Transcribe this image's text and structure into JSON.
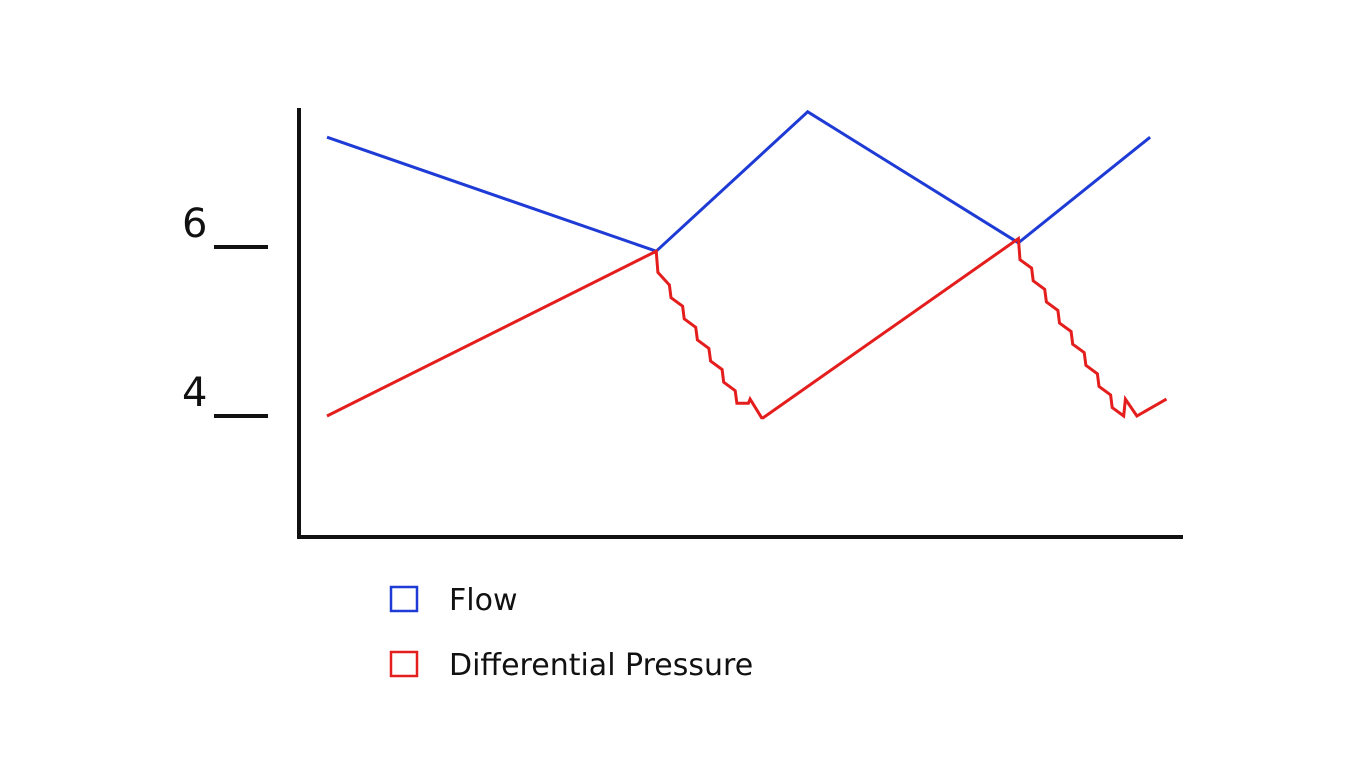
{
  "chart_data": {
    "type": "line",
    "title": "",
    "xlabel": "",
    "ylabel": "",
    "grid": false,
    "legend_placement": "bottom",
    "ylim": [
      2.6,
      7.6
    ],
    "xlim": [
      0,
      26
    ],
    "yticks": [
      {
        "value": 6,
        "label": "6"
      },
      {
        "value": 4,
        "label": "4"
      }
    ],
    "series": [
      {
        "name": "Flow",
        "color": "#1f3bd6",
        "x": [
          0,
          10,
          14.6,
          21,
          25
        ],
        "y": [
          7.3,
          5.95,
          7.6,
          6.05,
          7.3
        ]
      },
      {
        "name": "Differential Pressure",
        "color": "#e41d1d",
        "x": [
          0,
          10,
          10.05,
          10.4,
          10.45,
          10.8,
          10.85,
          11.2,
          11.25,
          11.6,
          11.65,
          12.0,
          12.05,
          12.4,
          12.45,
          12.8,
          12.85,
          13.2,
          13.25,
          21,
          21.05,
          21.4,
          21.45,
          21.8,
          21.85,
          22.2,
          22.25,
          22.6,
          22.65,
          23.0,
          23.05,
          23.4,
          23.45,
          23.8,
          23.85,
          24.2,
          24.25,
          24.6,
          25.5
        ],
        "y": [
          4.0,
          5.95,
          5.7,
          5.55,
          5.4,
          5.3,
          5.15,
          5.05,
          4.9,
          4.8,
          4.65,
          4.55,
          4.4,
          4.3,
          4.15,
          4.15,
          4.2,
          3.98,
          3.98,
          6.1,
          5.85,
          5.75,
          5.6,
          5.5,
          5.35,
          5.25,
          5.1,
          5.0,
          4.85,
          4.75,
          4.6,
          4.5,
          4.35,
          4.25,
          4.1,
          4.0,
          4.2,
          4.0,
          4.2
        ]
      }
    ]
  }
}
